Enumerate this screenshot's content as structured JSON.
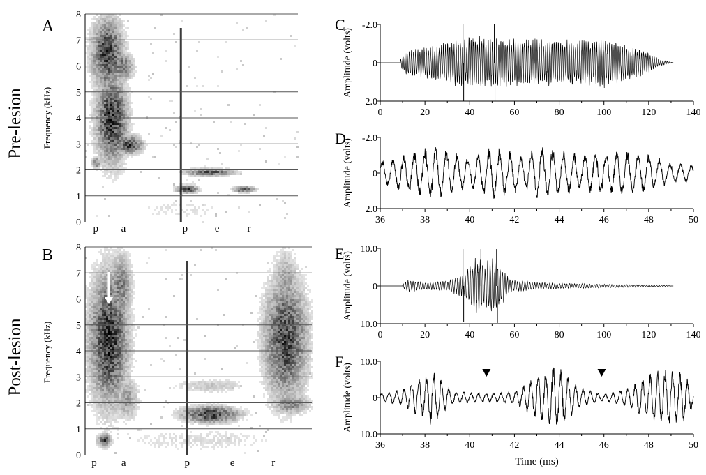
{
  "row_labels": [
    "Pre-lesion",
    "Post-lesion"
  ],
  "chart_data": [
    {
      "panel": "A",
      "type": "heatmap",
      "ylabel": "Frequency (kHz)",
      "ylim": [
        0,
        8
      ],
      "yticks": [
        "0",
        "1",
        "2",
        "3",
        "4",
        "5",
        "6",
        "7",
        "8"
      ],
      "grid": true,
      "phonemes": [
        "p",
        "a",
        "p",
        "e",
        "r"
      ],
      "blobs": [
        {
          "t": 0.1,
          "f": 6.5,
          "rt": 0.07,
          "rf": 1.3,
          "v": 0.9
        },
        {
          "t": 0.12,
          "f": 4.0,
          "rt": 0.07,
          "rf": 1.6,
          "v": 0.95
        },
        {
          "t": 0.2,
          "f": 3.0,
          "rt": 0.06,
          "rf": 0.35,
          "v": 0.85
        },
        {
          "t": 0.05,
          "f": 2.3,
          "rt": 0.02,
          "rf": 0.2,
          "v": 0.6
        },
        {
          "t": 0.17,
          "f": 6.0,
          "rt": 0.05,
          "rf": 0.5,
          "v": 0.7
        },
        {
          "t": 0.475,
          "f": 1.3,
          "rt": 0.05,
          "rf": 0.15,
          "v": 0.85
        },
        {
          "t": 0.58,
          "f": 1.95,
          "rt": 0.11,
          "rf": 0.15,
          "v": 0.75
        },
        {
          "t": 0.74,
          "f": 1.3,
          "rt": 0.05,
          "rf": 0.12,
          "v": 0.8
        },
        {
          "t": 0.45,
          "f": 0.5,
          "rt": 0.3,
          "rf": 0.6,
          "v": 0.12
        }
      ],
      "bursts": [
        0.45
      ]
    },
    {
      "panel": "B",
      "type": "heatmap",
      "ylabel": "Frequency (kHz)",
      "ylim": [
        0,
        8
      ],
      "yticks": [
        "0",
        "1",
        "2",
        "3",
        "4",
        "5",
        "6",
        "7",
        "8"
      ],
      "grid": true,
      "phonemes": [
        "p",
        "a",
        "p",
        "e",
        "r"
      ],
      "annotation": "arrow",
      "blobs": [
        {
          "t": 0.1,
          "f": 4.5,
          "rt": 0.08,
          "rf": 2.4,
          "v": 0.95
        },
        {
          "t": 0.15,
          "f": 6.5,
          "rt": 0.05,
          "rf": 1.2,
          "v": 0.6
        },
        {
          "t": 0.08,
          "f": 0.6,
          "rt": 0.03,
          "rf": 0.25,
          "v": 0.8
        },
        {
          "t": 0.18,
          "f": 2.2,
          "rt": 0.05,
          "rf": 0.8,
          "v": 0.45
        },
        {
          "t": 0.55,
          "f": 1.6,
          "rt": 0.12,
          "rf": 0.3,
          "v": 0.9
        },
        {
          "t": 0.55,
          "f": 2.7,
          "rt": 0.15,
          "rf": 0.3,
          "v": 0.25
        },
        {
          "t": 0.88,
          "f": 4.5,
          "rt": 0.09,
          "rf": 2.2,
          "v": 0.85
        },
        {
          "t": 0.9,
          "f": 2.0,
          "rt": 0.08,
          "rf": 0.4,
          "v": 0.55
        },
        {
          "t": 0.88,
          "f": 6.5,
          "rt": 0.06,
          "rf": 1.3,
          "v": 0.45
        },
        {
          "t": 0.5,
          "f": 0.6,
          "rt": 0.4,
          "rf": 0.5,
          "v": 0.15
        }
      ],
      "bursts": [
        0.45
      ]
    },
    {
      "panel": "C",
      "type": "line",
      "xlabel": "",
      "ylabel": "Amplitude (volts)",
      "xlim": [
        0,
        140
      ],
      "ylim": [
        -2,
        2
      ],
      "xticks": [
        "0",
        "20",
        "40",
        "60",
        "80",
        "100",
        "120",
        "140"
      ],
      "yticks": [
        "-2.0",
        "0",
        "2.0"
      ],
      "signal": {
        "start": 9,
        "end": 130,
        "freq": 1.05,
        "peak": 1.15,
        "envelope": [
          [
            9,
            0.15
          ],
          [
            12,
            0.6
          ],
          [
            25,
            0.8
          ],
          [
            40,
            1.2
          ],
          [
            60,
            1.15
          ],
          [
            80,
            1.0
          ],
          [
            100,
            1.1
          ],
          [
            115,
            0.7
          ],
          [
            125,
            0.15
          ],
          [
            130,
            0.03
          ]
        ],
        "spikes": [
          [
            37,
            2.0
          ],
          [
            37.3,
            -2.0
          ],
          [
            51,
            2.0
          ],
          [
            51.3,
            -2.0
          ]
        ]
      }
    },
    {
      "panel": "D",
      "type": "line",
      "xlabel": "",
      "ylabel": "Amplitude (volts)",
      "xlim": [
        36,
        50
      ],
      "ylim": [
        -2,
        2
      ],
      "xticks": [
        "36",
        "38",
        "40",
        "42",
        "44",
        "46",
        "48",
        "50"
      ],
      "yticks": [
        "-2.0",
        "0",
        "2.0"
      ],
      "signal": {
        "start": 36,
        "end": 50,
        "freq": 2.1,
        "peak": 1.1,
        "envelope": [
          [
            36,
            0.6
          ],
          [
            38.5,
            1.3
          ],
          [
            40,
            0.7
          ],
          [
            41,
            1.3
          ],
          [
            42.5,
            0.8
          ],
          [
            43,
            1.3
          ],
          [
            45,
            0.9
          ],
          [
            46.5,
            1.1
          ],
          [
            48,
            0.9
          ],
          [
            49,
            0.5
          ],
          [
            50,
            0.4
          ]
        ],
        "spikes": []
      }
    },
    {
      "panel": "E",
      "type": "line",
      "xlabel": "",
      "ylabel": "Amplitude (volts)",
      "xlim": [
        0,
        140
      ],
      "ylim": [
        -10,
        10
      ],
      "xticks": [
        "0",
        "20",
        "40",
        "60",
        "80",
        "100",
        "120",
        "140"
      ],
      "yticks": [
        "10.0",
        "0",
        "10.0"
      ],
      "signal": {
        "start": 10,
        "end": 130,
        "freq": 0.9,
        "peak": 1.0,
        "envelope": [
          [
            10,
            0.5
          ],
          [
            12,
            1.5
          ],
          [
            20,
            0.8
          ],
          [
            30,
            1.2
          ],
          [
            38,
            3.0
          ],
          [
            43,
            7.0
          ],
          [
            47,
            5.0
          ],
          [
            50,
            7.5
          ],
          [
            55,
            4.0
          ],
          [
            58,
            1.5
          ],
          [
            70,
            0.8
          ],
          [
            100,
            0.4
          ],
          [
            125,
            0.2
          ],
          [
            130,
            0.05
          ]
        ],
        "spikes": [
          [
            37,
            9.8
          ],
          [
            37.3,
            -9.5
          ],
          [
            45,
            9.8
          ],
          [
            52,
            9.8
          ],
          [
            52.4,
            -9.8
          ]
        ]
      }
    },
    {
      "panel": "F",
      "type": "line",
      "xlabel": "Time (ms)",
      "ylabel": "Amplitude (volts)",
      "xlim": [
        36,
        50
      ],
      "ylim": [
        -10,
        10
      ],
      "xticks": [
        "36",
        "38",
        "40",
        "42",
        "44",
        "46",
        "48",
        "50"
      ],
      "yticks": [
        "10.0",
        "0",
        "10.0"
      ],
      "markers_x": [
        40.75,
        45.9
      ],
      "signal": {
        "start": 36,
        "end": 50,
        "freq": 3.0,
        "peak": 1.0,
        "envelope": [
          [
            36,
            1.0
          ],
          [
            37,
            2.0
          ],
          [
            38.3,
            6.5
          ],
          [
            39.3,
            1.5
          ],
          [
            40.7,
            1.0
          ],
          [
            42,
            1.5
          ],
          [
            43.8,
            8.0
          ],
          [
            45,
            2.5
          ],
          [
            45.9,
            0.8
          ],
          [
            47,
            2.0
          ],
          [
            48.3,
            6.5
          ],
          [
            49.5,
            6.0
          ],
          [
            50,
            2.5
          ]
        ],
        "spikes": []
      }
    }
  ]
}
